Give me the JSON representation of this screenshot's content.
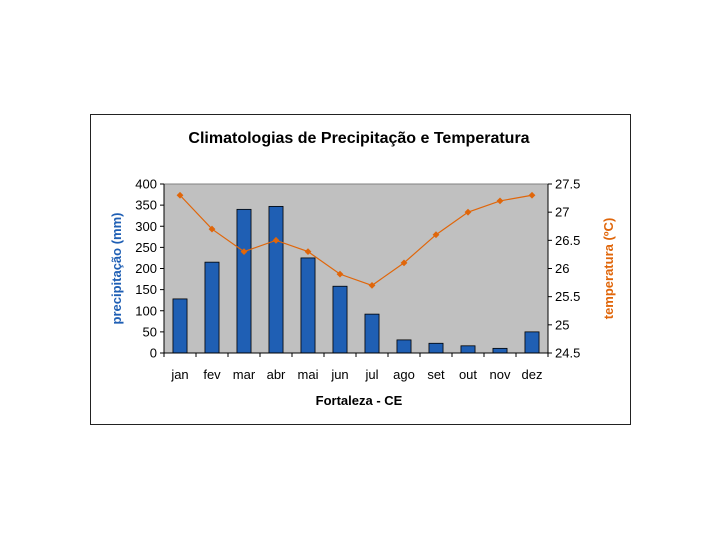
{
  "chart_data": {
    "type": "bar+line",
    "title": "Climatologias de Precipitação e Temperatura",
    "xlabel": "Fortaleza - CE",
    "ylabel_left": "precipitação (mm)",
    "ylabel_right": "temperatura (ºC)",
    "categories": [
      "jan",
      "fev",
      "mar",
      "abr",
      "mai",
      "jun",
      "jul",
      "ago",
      "set",
      "out",
      "nov",
      "dez"
    ],
    "ylim_left": [
      0,
      400
    ],
    "ylim_right": [
      24.5,
      27.5
    ],
    "yticks_left": [
      "0",
      "50",
      "100",
      "150",
      "200",
      "250",
      "300",
      "350",
      "400"
    ],
    "yticks_right": [
      "24.5",
      "25",
      "25.5",
      "26",
      "26.5",
      "27",
      "27.5"
    ],
    "series": [
      {
        "name": "precipitação",
        "kind": "bar",
        "axis": "left",
        "color": "#1f5fb4",
        "values": [
          128,
          215,
          340,
          347,
          225,
          158,
          92,
          31,
          23,
          17,
          11,
          50
        ]
      },
      {
        "name": "temperatura",
        "kind": "line",
        "axis": "right",
        "color": "#e0660a",
        "values": [
          27.3,
          26.7,
          26.3,
          26.5,
          26.3,
          25.9,
          25.7,
          26.1,
          26.6,
          27.0,
          27.2,
          27.3
        ]
      }
    ],
    "plot_background": "#c0c0c0",
    "grid": false,
    "legend": "none"
  }
}
